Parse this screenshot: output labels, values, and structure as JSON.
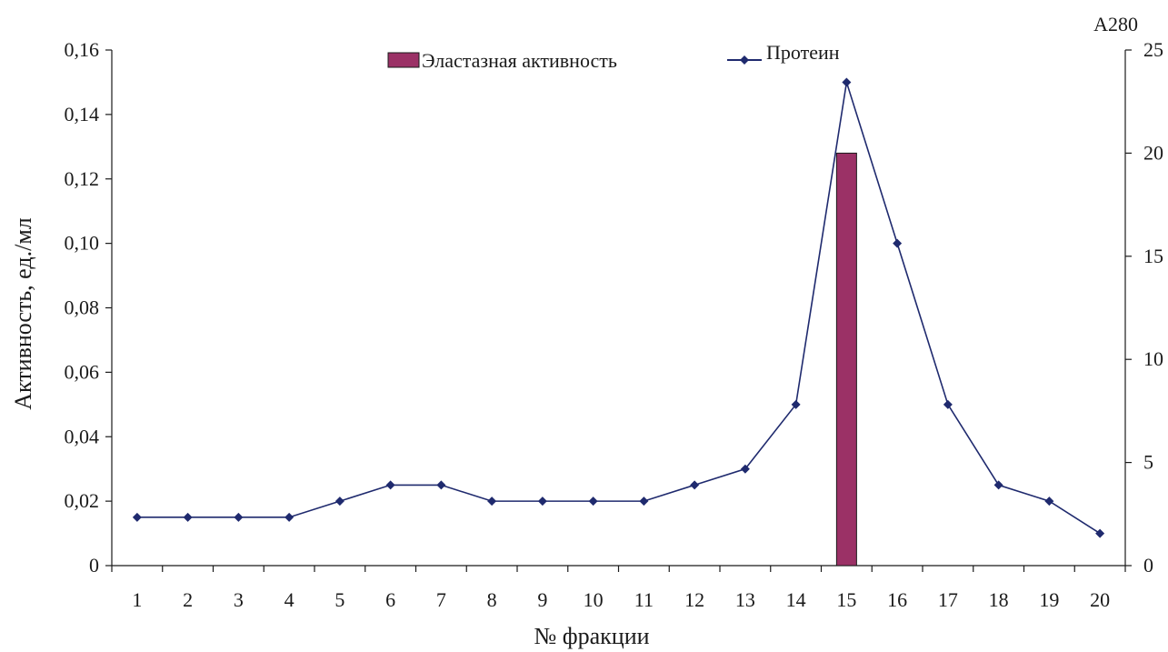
{
  "chart_data": {
    "type": "bar+line",
    "xlabel": "№ фракции",
    "ylabel": "Активность, ед./мл",
    "y2label": "A280",
    "categories": [
      "1",
      "2",
      "3",
      "4",
      "5",
      "6",
      "7",
      "8",
      "9",
      "10",
      "11",
      "12",
      "13",
      "14",
      "15",
      "16",
      "17",
      "18",
      "19",
      "20"
    ],
    "ylim": [
      0,
      0.16
    ],
    "y_ticks": [
      "0",
      "0,02",
      "0,04",
      "0,06",
      "0,08",
      "0,10",
      "0,12",
      "0,14",
      "0,16"
    ],
    "y2lim": [
      0,
      25
    ],
    "y2_ticks": [
      "0",
      "5",
      "10",
      "15",
      "20",
      "25"
    ],
    "grid": false,
    "legend_position": "top-center",
    "series": [
      {
        "name": "Эластазная активность",
        "type": "bar",
        "axis": "left",
        "color": "#9b3166",
        "values": [
          null,
          null,
          null,
          null,
          null,
          null,
          null,
          null,
          null,
          null,
          null,
          null,
          null,
          null,
          0.128,
          null,
          null,
          null,
          null,
          null
        ]
      },
      {
        "name": "Протеин",
        "type": "line",
        "axis": "left",
        "color": "#1f2a6e",
        "marker": "diamond",
        "values": [
          0.015,
          0.015,
          0.015,
          0.015,
          0.02,
          0.025,
          0.025,
          0.02,
          0.02,
          0.02,
          0.02,
          0.025,
          0.03,
          0.05,
          0.15,
          0.1,
          0.05,
          0.025,
          0.02,
          0.01
        ]
      }
    ]
  }
}
